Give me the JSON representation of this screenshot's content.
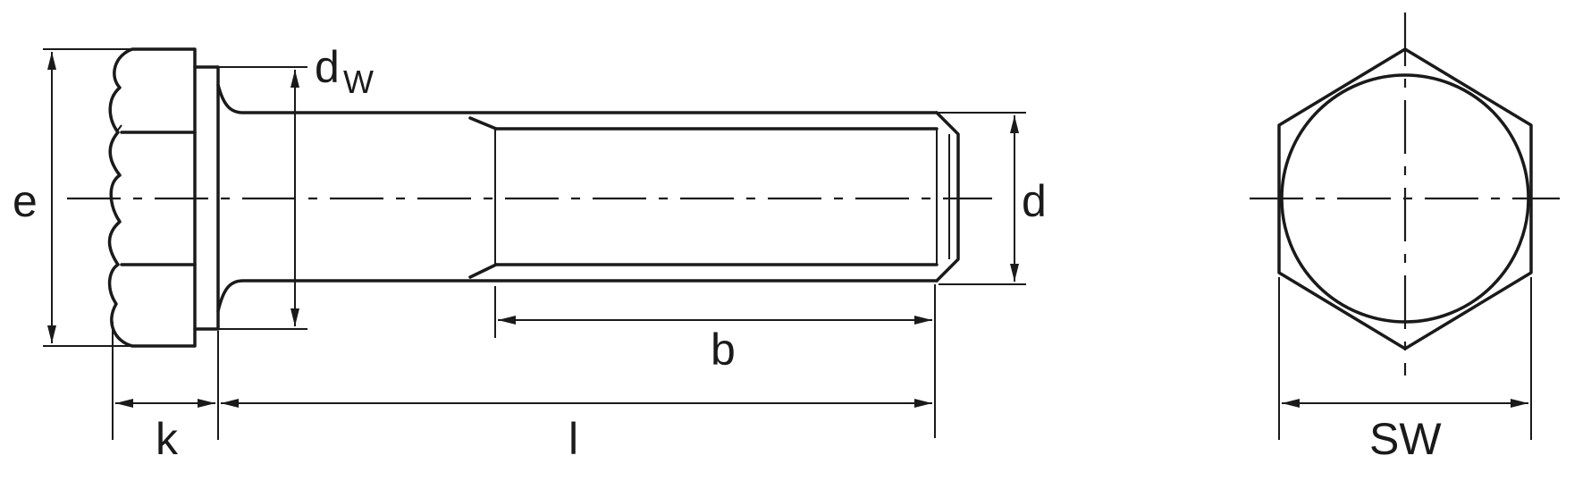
{
  "labels": {
    "e": "e",
    "k": "k",
    "dw": "d",
    "dw_sub": "W",
    "l": "l",
    "b": "b",
    "d": "d",
    "sw": "SW"
  },
  "colors": {
    "line": "#1a1a1a",
    "background": "#ffffff"
  }
}
